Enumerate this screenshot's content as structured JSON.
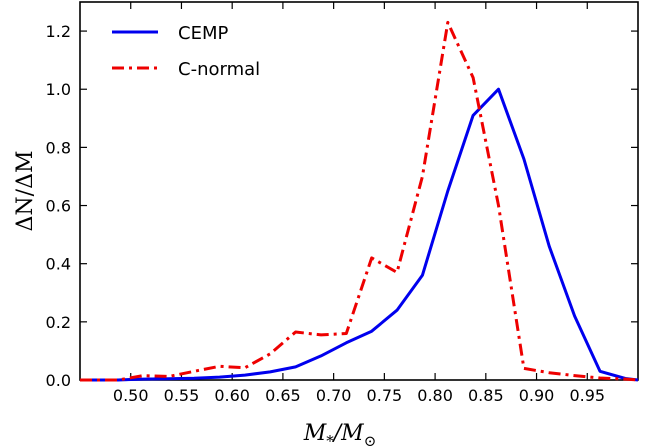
{
  "chart_data": {
    "type": "line",
    "xlabel": "M_*/M_⊙",
    "ylabel": "ΔN/ΔM",
    "xlim": [
      0.45,
      1.0
    ],
    "ylim": [
      0,
      1.3
    ],
    "xticks": [
      0.5,
      0.55,
      0.6,
      0.65,
      0.7,
      0.75,
      0.8,
      0.85,
      0.9,
      0.95
    ],
    "xtick_labels": [
      "0.50",
      "0.55",
      "0.60",
      "0.65",
      "0.70",
      "0.75",
      "0.80",
      "0.85",
      "0.90",
      "0.95"
    ],
    "yticks": [
      0.0,
      0.2,
      0.4,
      0.6,
      0.8,
      1.0,
      1.2
    ],
    "ytick_labels": [
      "0.0",
      "0.2",
      "0.4",
      "0.6",
      "0.8",
      "1.0",
      "1.2"
    ],
    "grid": false,
    "legend_position": "top-left",
    "series": [
      {
        "name": "CEMP",
        "color": "#0000ee",
        "style": "solid",
        "x": [
          0.45,
          0.4625,
          0.4875,
          0.5125,
          0.5375,
          0.5625,
          0.5875,
          0.6125,
          0.6375,
          0.6625,
          0.6875,
          0.7125,
          0.7375,
          0.7625,
          0.7875,
          0.8125,
          0.8375,
          0.8625,
          0.8875,
          0.9125,
          0.9375,
          0.9625,
          0.9875,
          1.0
        ],
        "y": [
          0.0,
          0.0,
          0.0,
          0.003,
          0.004,
          0.006,
          0.01,
          0.017,
          0.028,
          0.045,
          0.083,
          0.128,
          0.168,
          0.24,
          0.36,
          0.65,
          0.91,
          1.0,
          0.76,
          0.46,
          0.22,
          0.03,
          0.005,
          0.0
        ]
      },
      {
        "name": "C-normal",
        "color": "#ee0000",
        "style": "dashdot",
        "x": [
          0.45,
          0.4625,
          0.4875,
          0.5125,
          0.5375,
          0.5625,
          0.5875,
          0.6125,
          0.6375,
          0.6625,
          0.6875,
          0.7125,
          0.7375,
          0.7625,
          0.7875,
          0.8125,
          0.8375,
          0.8625,
          0.8875,
          0.9125,
          0.9375,
          0.9625,
          0.9875,
          1.0
        ],
        "y": [
          0.0,
          0.0,
          0.0,
          0.015,
          0.012,
          0.03,
          0.047,
          0.042,
          0.09,
          0.165,
          0.155,
          0.16,
          0.42,
          0.37,
          0.7,
          1.23,
          1.04,
          0.6,
          0.04,
          0.025,
          0.015,
          0.007,
          0.003,
          0.0
        ]
      }
    ]
  }
}
